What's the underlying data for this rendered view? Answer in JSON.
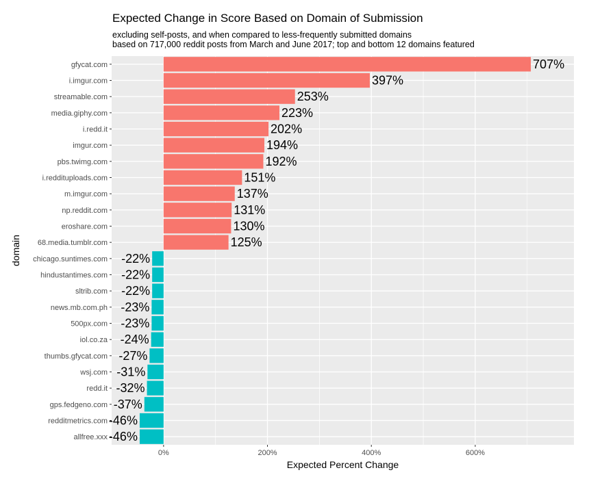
{
  "chart_data": {
    "type": "bar",
    "orientation": "horizontal",
    "title": "Expected Change in Score Based on Domain of Submission",
    "subtitle_lines": [
      "excluding self-posts, and when compared to less-frequently submitted domains",
      "based on 717,000 reddit posts from March and June 2017; top and bottom 12 domains featured"
    ],
    "xlabel": "Expected Percent Change",
    "ylabel": "domain",
    "xlim": [
      -100,
      790
    ],
    "xticks": [
      {
        "value": 0,
        "label": "0%"
      },
      {
        "value": 200,
        "label": "200%"
      },
      {
        "value": 400,
        "label": "400%"
      },
      {
        "value": 600,
        "label": "600%"
      }
    ],
    "grid": true,
    "legend": "none",
    "colors": {
      "positive": "#F8766D",
      "negative": "#00BFC4",
      "panel": "#EBEBEB",
      "grid": "#ffffff"
    },
    "categories": [
      "gfycat.com",
      "i.imgur.com",
      "streamable.com",
      "media.giphy.com",
      "i.redd.it",
      "imgur.com",
      "pbs.twimg.com",
      "i.reddituploads.com",
      "m.imgur.com",
      "np.reddit.com",
      "eroshare.com",
      "68.media.tumblr.com",
      "chicago.suntimes.com",
      "hindustantimes.com",
      "sltrib.com",
      "news.mb.com.ph",
      "500px.com",
      "iol.co.za",
      "thumbs.gfycat.com",
      "wsj.com",
      "redd.it",
      "gps.fedgeno.com",
      "redditmetrics.com",
      "allfree.xxx"
    ],
    "values": [
      707,
      397,
      253,
      223,
      202,
      194,
      192,
      151,
      137,
      131,
      130,
      125,
      -22,
      -22,
      -22,
      -23,
      -23,
      -24,
      -27,
      -31,
      -32,
      -37,
      -46,
      -46
    ],
    "data_labels": [
      "707%",
      "397%",
      "253%",
      "223%",
      "202%",
      "194%",
      "192%",
      "151%",
      "137%",
      "131%",
      "130%",
      "125%",
      "-22%",
      "-22%",
      "-22%",
      "-23%",
      "-23%",
      "-24%",
      "-27%",
      "-31%",
      "-32%",
      "-37%",
      "-46%",
      "-46%"
    ]
  }
}
